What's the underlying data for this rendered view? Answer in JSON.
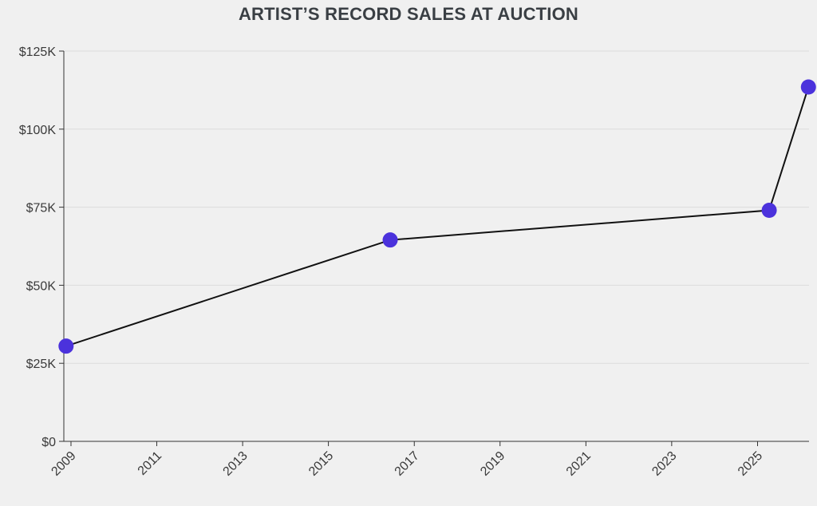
{
  "chart_data": {
    "type": "line",
    "title": "ARTIST’S RECORD SALES AT AUCTION",
    "xlabel": "",
    "ylabel": "",
    "x_axis": {
      "type": "date",
      "range": [
        "2008-11-01",
        "2026-03-15"
      ],
      "ticks": [
        "2009",
        "2011",
        "2013",
        "2015",
        "2017",
        "2019",
        "2021",
        "2023",
        "2025"
      ]
    },
    "y_axis": {
      "range": [
        0,
        125000
      ],
      "ticks": [
        {
          "value": 0,
          "label": "$0"
        },
        {
          "value": 25000,
          "label": "$25K"
        },
        {
          "value": 50000,
          "label": "$50K"
        },
        {
          "value": 75000,
          "label": "$75K"
        },
        {
          "value": 100000,
          "label": "$100K"
        },
        {
          "value": 125000,
          "label": "$125K"
        }
      ]
    },
    "grid": "horizontal",
    "legend": "none",
    "series": [
      {
        "color": "#4b32dc",
        "line_color": "#111111",
        "points": [
          {
            "x": "2008-11-20",
            "y": 30500
          },
          {
            "x": "2016-06-10",
            "y": 64500
          },
          {
            "x": "2025-04-10",
            "y": 74000
          },
          {
            "x": "2026-03-10",
            "y": 113500
          }
        ]
      }
    ]
  }
}
